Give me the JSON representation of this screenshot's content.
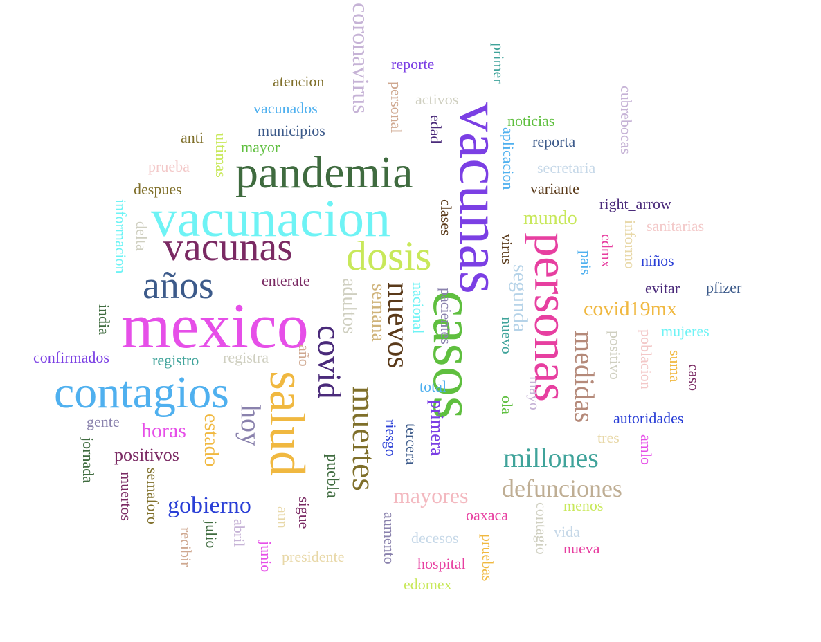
{
  "words": [
    {
      "t": "vacunas",
      "c": "#7b3fe4"
    },
    {
      "t": "casos",
      "c": "#5fbf3f"
    },
    {
      "t": "mexico",
      "c": "#e64fe8"
    },
    {
      "t": "vacunacion",
      "c": "#6ef3f5"
    },
    {
      "t": "pandemia",
      "c": "#3f6b3f"
    },
    {
      "t": "contagios",
      "c": "#4fb0ef"
    },
    {
      "t": "personas",
      "c": "#e73fa0"
    },
    {
      "t": "salud",
      "c": "#f0b840"
    },
    {
      "t": "vacunas",
      "c": "#7a2a63"
    },
    {
      "t": "dosis",
      "c": "#c8e85a"
    },
    {
      "t": "años",
      "c": "#3c5a8a"
    },
    {
      "t": "muertes",
      "c": "#7f6f2a"
    },
    {
      "t": "nuevos",
      "c": "#5a3a1a"
    },
    {
      "t": "covid",
      "c": "#4a2a7a"
    },
    {
      "t": "hoy",
      "c": "#8a82ad"
    },
    {
      "t": "medidas",
      "c": "#b58a7a"
    },
    {
      "t": "millones",
      "c": "#3fa39a"
    },
    {
      "t": "defunciones",
      "c": "#bfae94"
    },
    {
      "t": "coronavirus",
      "c": "#c6b3d6"
    },
    {
      "t": "gobierno",
      "c": "#2a3fd6"
    },
    {
      "t": "mayores",
      "c": "#f3b8bf"
    },
    {
      "t": "segunda",
      "c": "#b6d3e8"
    },
    {
      "t": "semana",
      "c": "#cfb37a"
    },
    {
      "t": "adultos",
      "c": "#cfcfc0"
    },
    {
      "t": "covid19mx",
      "c": "#f0b840"
    },
    {
      "t": "horas",
      "c": "#e64fe8"
    },
    {
      "t": "estado",
      "c": "#f0b840"
    },
    {
      "t": "positivos",
      "c": "#7a2a63"
    },
    {
      "t": "mundo",
      "c": "#c8e85a"
    },
    {
      "t": "primera",
      "c": "#7b3fe4"
    },
    {
      "t": "puebla",
      "c": "#3f6b3f"
    },
    {
      "t": "enterate",
      "c": "#7a2a63"
    },
    {
      "t": "nacional",
      "c": "#6ef3f5"
    },
    {
      "t": "confirmados",
      "c": "#7b3fe4"
    },
    {
      "t": "right_arrow",
      "c": "#4a2a7a"
    },
    {
      "t": "aplicacion",
      "c": "#4fb0ef"
    },
    {
      "t": "municipios",
      "c": "#3c5a8a"
    },
    {
      "t": "vacunados",
      "c": "#4fb0ef"
    },
    {
      "t": "autoridades",
      "c": "#2a3fd6"
    },
    {
      "t": "reporte",
      "c": "#7b3fe4"
    },
    {
      "t": "atencion",
      "c": "#7f6f2a"
    },
    {
      "t": "noticias",
      "c": "#5fbf3f"
    },
    {
      "t": "reporta",
      "c": "#3c5a8a"
    },
    {
      "t": "secretaria",
      "c": "#c6d8e8"
    },
    {
      "t": "variante",
      "c": "#5a3a1a"
    },
    {
      "t": "sanitarias",
      "c": "#f3c8c8"
    },
    {
      "t": "niños",
      "c": "#2a3fd6"
    },
    {
      "t": "evitar",
      "c": "#4a2a7a"
    },
    {
      "t": "pfizer",
      "c": "#3c5a8a"
    },
    {
      "t": "mujeres",
      "c": "#6ef3f5"
    },
    {
      "t": "registro",
      "c": "#3fa39a"
    },
    {
      "t": "registra",
      "c": "#cfcfc0"
    },
    {
      "t": "gente",
      "c": "#8a82ad"
    },
    {
      "t": "prueba",
      "c": "#f3c8c8"
    },
    {
      "t": "despues",
      "c": "#7f6f2a"
    },
    {
      "t": "anti",
      "c": "#7f6f2a"
    },
    {
      "t": "mayor",
      "c": "#5fbf3f"
    },
    {
      "t": "activos",
      "c": "#cfcfc0"
    },
    {
      "t": "total",
      "c": "#4fb0ef"
    },
    {
      "t": "oaxaca",
      "c": "#e73fa0"
    },
    {
      "t": "menos",
      "c": "#c8e85a"
    },
    {
      "t": "vida",
      "c": "#c6d8e8"
    },
    {
      "t": "nueva",
      "c": "#e73fa0"
    },
    {
      "t": "decesos",
      "c": "#c6d8e8"
    },
    {
      "t": "hospital",
      "c": "#e73fa0"
    },
    {
      "t": "edomex",
      "c": "#c8e85a"
    },
    {
      "t": "presidente",
      "c": "#e8d8a8"
    },
    {
      "t": "tres",
      "c": "#e8d8a8"
    },
    {
      "t": "pais",
      "c": "#4fb0ef"
    },
    {
      "t": "cdmx",
      "c": "#e73fa0"
    },
    {
      "t": "primer",
      "c": "#3fa39a"
    },
    {
      "t": "cubrebocas",
      "c": "#c6b3d6"
    },
    {
      "t": "personal",
      "c": "#cfa890"
    },
    {
      "t": "edad",
      "c": "#4a2a7a"
    },
    {
      "t": "ultimas",
      "c": "#c8e85a"
    },
    {
      "t": "informacion",
      "c": "#6ef3f5"
    },
    {
      "t": "delta",
      "c": "#cfcfc0"
    },
    {
      "t": "india",
      "c": "#3f6b3f"
    },
    {
      "t": "clases",
      "c": "#5a3a1a"
    },
    {
      "t": "virus",
      "c": "#5a3a1a"
    },
    {
      "t": "informo",
      "c": "#e8d8a8"
    },
    {
      "t": "pacientes",
      "c": "#8a82ad"
    },
    {
      "t": "nuevo",
      "c": "#3fa39a"
    },
    {
      "t": "ola",
      "c": "#5fbf3f"
    },
    {
      "t": "mayo",
      "c": "#c6b3d6"
    },
    {
      "t": "positivo",
      "c": "#cfcfc0"
    },
    {
      "t": "poblacion",
      "c": "#f3c8c8"
    },
    {
      "t": "suma",
      "c": "#f0b840"
    },
    {
      "t": "caso",
      "c": "#7a2a63"
    },
    {
      "t": "amlo",
      "c": "#e64fe8"
    },
    {
      "t": "año",
      "c": "#cfa890"
    },
    {
      "t": "riesgo",
      "c": "#2a3fd6"
    },
    {
      "t": "tercera",
      "c": "#3c5a8a"
    },
    {
      "t": "jornada",
      "c": "#3f6b3f"
    },
    {
      "t": "muertos",
      "c": "#7a2a63"
    },
    {
      "t": "semaforo",
      "c": "#7f6f2a"
    },
    {
      "t": "julio",
      "c": "#3f6b3f"
    },
    {
      "t": "abril",
      "c": "#c6b3d6"
    },
    {
      "t": "aun",
      "c": "#e8d8a8"
    },
    {
      "t": "sigue",
      "c": "#7a2a63"
    },
    {
      "t": "recibir",
      "c": "#cfa890"
    },
    {
      "t": "junio",
      "c": "#e64fe8"
    },
    {
      "t": "aumento",
      "c": "#8a82ad"
    },
    {
      "t": "pruebas",
      "c": "#f0b840"
    },
    {
      "t": "contagio",
      "c": "#cfcfc0"
    }
  ]
}
